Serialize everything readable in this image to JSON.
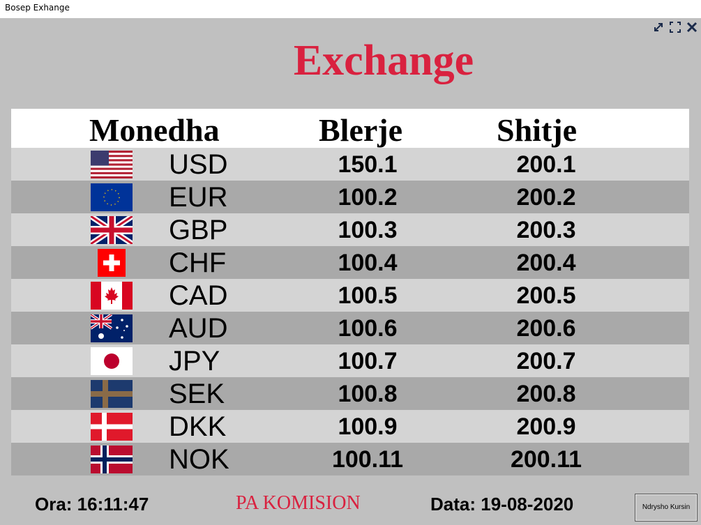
{
  "window": {
    "title": "Bosep Exhange"
  },
  "heading": "Exchange",
  "columns": {
    "currency": "Monedha",
    "buy": "Blerje",
    "sell": "Shitje"
  },
  "rates": [
    {
      "code": "USD",
      "flag": "us-flag-icon",
      "buy": "150.1",
      "sell": "200.1"
    },
    {
      "code": "EUR",
      "flag": "eu-flag-icon",
      "buy": "100.2",
      "sell": "200.2"
    },
    {
      "code": "GBP",
      "flag": "gb-flag-icon",
      "buy": "100.3",
      "sell": "200.3"
    },
    {
      "code": "CHF",
      "flag": "ch-flag-icon",
      "buy": "100.4",
      "sell": "200.4"
    },
    {
      "code": "CAD",
      "flag": "ca-flag-icon",
      "buy": "100.5",
      "sell": "200.5"
    },
    {
      "code": "AUD",
      "flag": "au-flag-icon",
      "buy": "100.6",
      "sell": "200.6"
    },
    {
      "code": "JPY",
      "flag": "jp-flag-icon",
      "buy": "100.7",
      "sell": "200.7"
    },
    {
      "code": "SEK",
      "flag": "se-flag-icon",
      "buy": "100.8",
      "sell": "200.8"
    },
    {
      "code": "DKK",
      "flag": "dk-flag-icon",
      "buy": "100.9",
      "sell": "200.9"
    },
    {
      "code": "NOK",
      "flag": "no-flag-icon",
      "buy": "100.11",
      "sell": "200.11"
    }
  ],
  "footer": {
    "time": "Ora: 16:11:47",
    "commission": "PA KOMISION",
    "date": "Data: 19-08-2020",
    "change_button": "Ndrysho Kursin"
  },
  "colors": {
    "accent": "#d9213f",
    "background": "#c0c0c0",
    "row_light": "#d4d4d4",
    "row_dark": "#a9a9a9"
  }
}
